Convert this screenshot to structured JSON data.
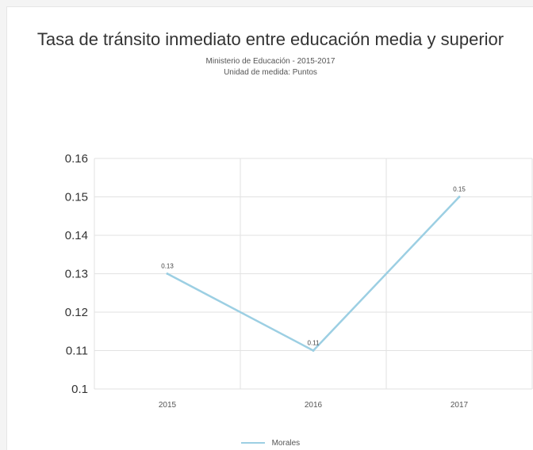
{
  "colors": {
    "series": "#9ccfe3",
    "grid": "#e2e2e2"
  },
  "chart_data": {
    "type": "line",
    "title": "Tasa de tránsito inmediato entre educación media y superior",
    "subtitle_lines": [
      "Ministerio de Educación - 2015-2017",
      "Unidad de medida: Puntos"
    ],
    "categories": [
      "2015",
      "2016",
      "2017"
    ],
    "series": [
      {
        "name": "Morales",
        "values": [
          0.13,
          0.11,
          0.15
        ],
        "labels": [
          "0.13",
          "0.11",
          "0.15"
        ]
      }
    ],
    "y_ticks": [
      "0.16",
      "0.15",
      "0.14",
      "0.13",
      "0.12",
      "0.11",
      "0.1"
    ],
    "ylim": [
      0.1,
      0.16
    ],
    "xlabel": "",
    "ylabel": "",
    "grid": true,
    "legend_position": "bottom"
  }
}
